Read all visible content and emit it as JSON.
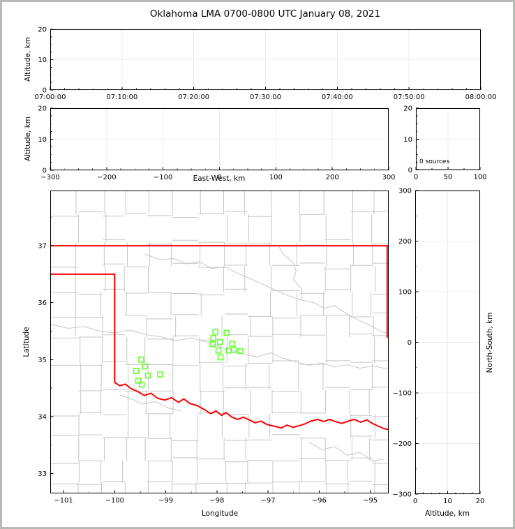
{
  "figure": {
    "title": "Oklahoma LMA 0700-0800 UTC January 08, 2021",
    "frame_color": "#b7bab7",
    "colors": {
      "axis": "#000000",
      "tick_label": "#000000",
      "grid": "#ededed",
      "county_line": "#c6c6c6",
      "state_border": "#ff0000",
      "source_marker": "#66ff33"
    }
  },
  "labels": {
    "altitude_km": "Altitude, km",
    "east_west": "East-West, km",
    "longitude": "Longitude",
    "latitude": "Latitude",
    "north_south": "North-South, km"
  },
  "chart_data": {
    "type": "scatter",
    "description": "Multi-panel lightning mapping array plot; only the plan-view map contains source markers",
    "panels": {
      "time_height": {
        "x": {
          "range": [
            0,
            60
          ],
          "ticks": [
            0,
            10,
            20,
            30,
            40,
            50,
            60
          ],
          "tick_labels": [
            "07:00:00",
            "07:10:00",
            "07:20:00",
            "07:30:00",
            "07:40:00",
            "07:50:00",
            "08:00:00"
          ],
          "minor_step": 2
        },
        "y": {
          "range": [
            0,
            20
          ],
          "ticks": [
            0,
            10,
            20
          ],
          "tick_labels": [
            "0",
            "10",
            "20"
          ],
          "minor_step": 2.5
        },
        "points": []
      },
      "ew_height": {
        "x": {
          "range": [
            -300,
            300
          ],
          "ticks": [
            -300,
            -200,
            -100,
            0,
            100,
            200,
            300
          ],
          "tick_labels": [
            "−300",
            "−200",
            "−100",
            "0",
            "100",
            "200",
            "300"
          ],
          "minor_step": 25
        },
        "y": {
          "range": [
            0,
            20
          ],
          "ticks": [
            0,
            10,
            20
          ],
          "tick_labels": [
            "0",
            "10",
            "20"
          ],
          "minor_step": 2.5
        },
        "points": []
      },
      "source_hist": {
        "annotation": "0 sources",
        "x": {
          "range": [
            0,
            100
          ],
          "ticks": [
            0,
            50,
            100
          ],
          "tick_labels": [
            "0",
            "50",
            "100"
          ],
          "minor_step": 25
        },
        "y": {
          "range": [
            0,
            20
          ],
          "ticks": [
            0,
            10,
            20
          ],
          "tick_labels": [
            "0",
            "10",
            "20"
          ],
          "minor_step": 2.5
        },
        "points": []
      },
      "plan_map": {
        "x": {
          "range": [
            -101.26,
            -94.64
          ],
          "ticks": [
            -101,
            -100,
            -99,
            -98,
            -97,
            -96,
            -95
          ],
          "tick_labels": [
            "−101",
            "−100",
            "−99",
            "−98",
            "−97",
            "−96",
            "−95"
          ],
          "minor_step": 0.5
        },
        "y": {
          "range": [
            32.65,
            37.97
          ],
          "ticks": [
            33,
            34,
            35,
            36,
            37
          ],
          "tick_labels": [
            "33",
            "34",
            "35",
            "36",
            "37"
          ],
          "minor_step": 0.5
        },
        "sources_lonlat": [
          [
            -98.03,
            35.49
          ],
          [
            -97.81,
            35.47
          ],
          [
            -98.07,
            35.38
          ],
          [
            -97.94,
            35.31
          ],
          [
            -98.08,
            35.27
          ],
          [
            -97.7,
            35.28
          ],
          [
            -97.97,
            35.16
          ],
          [
            -97.77,
            35.16
          ],
          [
            -97.67,
            35.17
          ],
          [
            -97.54,
            35.15
          ],
          [
            -97.93,
            35.04
          ],
          [
            -99.48,
            35.0
          ],
          [
            -99.41,
            34.88
          ],
          [
            -99.58,
            34.8
          ],
          [
            -99.35,
            34.72
          ],
          [
            -99.11,
            34.74
          ],
          [
            -99.54,
            34.63
          ],
          [
            -99.47,
            34.56
          ]
        ]
      },
      "ns_height": {
        "x": {
          "range": [
            0,
            20
          ],
          "ticks": [
            0,
            10,
            20
          ],
          "tick_labels": [
            "0",
            "10",
            "20"
          ],
          "minor_step": 2.5
        },
        "y": {
          "range": [
            -300,
            300
          ],
          "ticks": [
            300,
            200,
            100,
            0,
            -100,
            -200,
            -300
          ],
          "tick_labels": [
            "300",
            "200",
            "100",
            "0",
            "−100",
            "−200",
            "−300"
          ],
          "minor_step": 50
        },
        "points": []
      }
    },
    "map_features": {
      "state_border_segments": [
        [
          [
            -101.26,
            37.0
          ],
          [
            -94.64,
            37.0
          ]
        ],
        [
          [
            -101.26,
            36.5
          ],
          [
            -100.0,
            36.5
          ]
        ],
        [
          [
            -100.0,
            36.5
          ],
          [
            -100.0,
            34.6
          ]
        ],
        [
          [
            -94.67,
            37.0
          ],
          [
            -94.67,
            35.39
          ]
        ]
      ],
      "red_river": [
        [
          -100.0,
          34.6
        ],
        [
          -99.9,
          34.54
        ],
        [
          -99.79,
          34.57
        ],
        [
          -99.68,
          34.49
        ],
        [
          -99.55,
          34.44
        ],
        [
          -99.42,
          34.37
        ],
        [
          -99.29,
          34.41
        ],
        [
          -99.16,
          34.32
        ],
        [
          -99.02,
          34.29
        ],
        [
          -98.89,
          34.33
        ],
        [
          -98.75,
          34.25
        ],
        [
          -98.65,
          34.31
        ],
        [
          -98.53,
          34.23
        ],
        [
          -98.38,
          34.19
        ],
        [
          -98.24,
          34.12
        ],
        [
          -98.12,
          34.05
        ],
        [
          -98.02,
          34.1
        ],
        [
          -97.91,
          34.02
        ],
        [
          -97.82,
          34.07
        ],
        [
          -97.71,
          33.99
        ],
        [
          -97.59,
          33.95
        ],
        [
          -97.48,
          33.99
        ],
        [
          -97.37,
          33.94
        ],
        [
          -97.25,
          33.89
        ],
        [
          -97.14,
          33.92
        ],
        [
          -97.02,
          33.86
        ],
        [
          -96.88,
          33.83
        ],
        [
          -96.74,
          33.8
        ],
        [
          -96.63,
          33.85
        ],
        [
          -96.51,
          33.81
        ],
        [
          -96.39,
          33.84
        ],
        [
          -96.28,
          33.87
        ],
        [
          -96.16,
          33.92
        ],
        [
          -96.03,
          33.95
        ],
        [
          -95.91,
          33.91
        ],
        [
          -95.8,
          33.95
        ],
        [
          -95.68,
          33.91
        ],
        [
          -95.56,
          33.88
        ],
        [
          -95.43,
          33.92
        ],
        [
          -95.31,
          33.95
        ],
        [
          -95.19,
          33.9
        ],
        [
          -95.07,
          33.94
        ],
        [
          -94.96,
          33.88
        ],
        [
          -94.84,
          33.83
        ],
        [
          -94.74,
          33.79
        ],
        [
          -94.64,
          33.77
        ]
      ],
      "gray_rivers": [
        [
          [
            -101.26,
            35.62
          ],
          [
            -100.9,
            35.55
          ],
          [
            -100.6,
            35.58
          ],
          [
            -100.3,
            35.5
          ],
          [
            -100.0,
            35.47
          ],
          [
            -99.7,
            35.52
          ],
          [
            -99.4,
            35.44
          ],
          [
            -99.1,
            35.4
          ],
          [
            -98.8,
            35.33
          ],
          [
            -98.5,
            35.38
          ],
          [
            -98.2,
            35.31
          ],
          [
            -97.95,
            35.23
          ],
          [
            -97.7,
            35.16
          ],
          [
            -97.45,
            35.09
          ],
          [
            -97.2,
            35.05
          ],
          [
            -96.95,
            35.12
          ],
          [
            -96.7,
            35.02
          ],
          [
            -96.45,
            34.96
          ],
          [
            -96.2,
            34.9
          ],
          [
            -95.95,
            34.94
          ],
          [
            -95.7,
            34.87
          ],
          [
            -95.45,
            34.91
          ],
          [
            -95.2,
            34.85
          ],
          [
            -94.95,
            34.89
          ],
          [
            -94.64,
            34.83
          ]
        ],
        [
          [
            -99.4,
            36.85
          ],
          [
            -99.1,
            36.75
          ],
          [
            -98.85,
            36.78
          ],
          [
            -98.6,
            36.68
          ],
          [
            -98.35,
            36.72
          ],
          [
            -98.1,
            36.6
          ],
          [
            -97.85,
            36.63
          ],
          [
            -97.6,
            36.52
          ],
          [
            -97.35,
            36.42
          ],
          [
            -97.1,
            36.32
          ],
          [
            -96.85,
            36.22
          ],
          [
            -96.6,
            36.12
          ],
          [
            -96.35,
            36.05
          ]
        ],
        [
          [
            -96.8,
            37.0
          ],
          [
            -96.7,
            36.85
          ],
          [
            -96.5,
            36.7
          ],
          [
            -96.45,
            36.55
          ],
          [
            -96.5,
            36.4
          ],
          [
            -96.35,
            36.25
          ],
          [
            -96.35,
            36.05
          ],
          [
            -96.1,
            36.0
          ],
          [
            -95.9,
            35.9
          ],
          [
            -95.7,
            35.95
          ],
          [
            -95.45,
            35.8
          ],
          [
            -95.25,
            35.7
          ],
          [
            -95.0,
            35.6
          ],
          [
            -94.8,
            35.5
          ],
          [
            -94.64,
            35.45
          ]
        ],
        [
          [
            -99.9,
            34.38
          ],
          [
            -99.65,
            34.3
          ],
          [
            -99.45,
            34.22
          ],
          [
            -99.2,
            34.26
          ],
          [
            -98.95,
            34.15
          ],
          [
            -98.7,
            34.1
          ]
        ],
        [
          [
            -96.2,
            33.55
          ],
          [
            -95.95,
            33.42
          ],
          [
            -95.7,
            33.47
          ],
          [
            -95.45,
            33.32
          ],
          [
            -95.2,
            33.37
          ],
          [
            -94.95,
            33.22
          ],
          [
            -94.75,
            33.25
          ]
        ]
      ]
    }
  }
}
